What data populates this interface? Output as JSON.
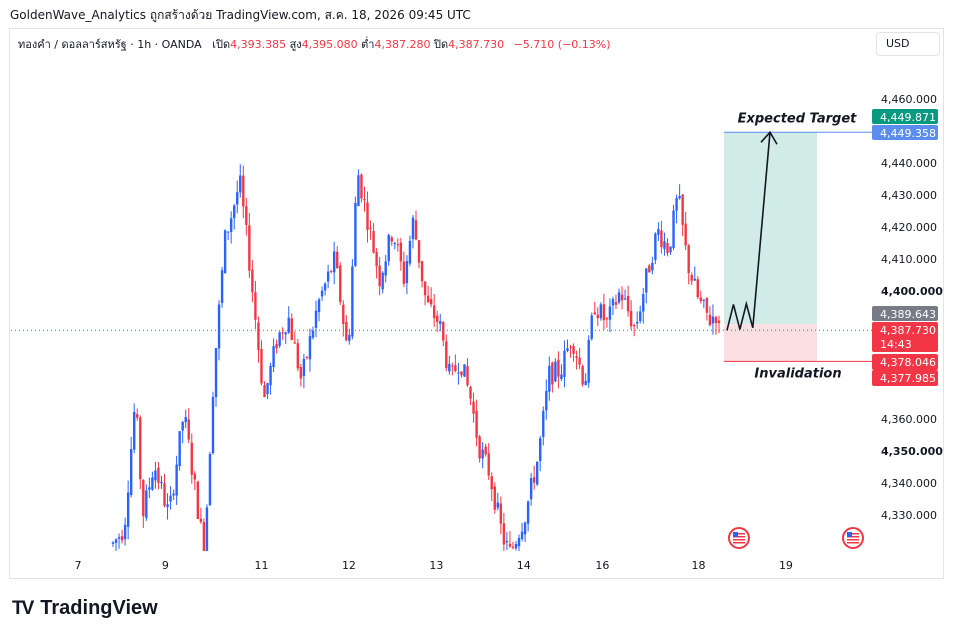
{
  "header": {
    "caption": "GoldenWave_Analytics ถูกสร้างด้วย TradingView.com, ส.ค. 18, 2026 09:45 UTC"
  },
  "legend": {
    "symbol": "ทองคำ / ดอลลาร์สหรัฐ · 1h · OANDA",
    "open_label": "เปิด",
    "open": "4,393.385",
    "high_label": "สูง",
    "high": "4,395.080",
    "low_label": "ต่ำ",
    "low": "4,387.280",
    "close_label": "ปิด",
    "close": "4,387.730",
    "change": "−5.710 (−0.13%)"
  },
  "currency": "USD",
  "brand": {
    "name": "TradingView",
    "mark": "TV"
  },
  "colors": {
    "up": "#2962ff",
    "down": "#f23645",
    "target_zone": "#d1ebe6",
    "stop_zone": "#fcdfe3",
    "target_label": "#089981",
    "current_price_tag": "#f23645",
    "grey_tag": "#787b86"
  },
  "chart_data": {
    "type": "candlestick",
    "title": "",
    "timeframe": "1h",
    "x_ticks": [
      "7",
      "9",
      "11",
      "12",
      "13",
      "14",
      "16",
      "18",
      "19"
    ],
    "y_ticks": [
      "4,460.000",
      "4,440.000",
      "4,430.000",
      "4,420.000",
      "4,410.000",
      "4,400.000",
      "4,360.000",
      "4,350.000",
      "4,340.000",
      "4,330.000"
    ],
    "y_bold_ticks": [
      "4,400.000",
      "4,350.000"
    ],
    "ylim": [
      4324,
      4463
    ],
    "current_price": 4387.73,
    "countdown": "14:43",
    "price_tags": [
      {
        "value": "4,449.871",
        "color": "#089981",
        "price": 4449.871
      },
      {
        "value": "4,449.358",
        "color": "#5b8def",
        "price": 4449.358
      },
      {
        "value": "4,389.643",
        "color": "#787b86",
        "price": 4389.643
      },
      {
        "value": "4,378.046",
        "color": "#f23645",
        "price": 4378.046
      },
      {
        "value": "4,377.985",
        "color": "#f23645",
        "price": 4377.985
      }
    ],
    "annotations": {
      "target_label": "Expected Target",
      "stop_label": "Invalidation"
    },
    "position": {
      "entry": 4389.6,
      "target": 4449.6,
      "stop": 4378.0
    },
    "projection_path": [
      [
        4387.7,
        0.0
      ],
      [
        4395.8,
        0.15
      ],
      [
        4388.0,
        0.3
      ],
      [
        4396.0,
        0.45
      ],
      [
        4388.5,
        0.6
      ],
      [
        4449.6,
        1.0
      ]
    ],
    "key_points": [
      [
        0.0,
        4321
      ],
      [
        0.6,
        4326
      ],
      [
        1.2,
        4366
      ],
      [
        1.6,
        4330
      ],
      [
        2.2,
        4346
      ],
      [
        3.0,
        4330
      ],
      [
        3.8,
        4362
      ],
      [
        4.9,
        4318
      ],
      [
        5.4,
        4374
      ],
      [
        6.0,
        4416
      ],
      [
        6.8,
        4434
      ],
      [
        7.3,
        4410
      ],
      [
        8.1,
        4366
      ],
      [
        8.8,
        4385
      ],
      [
        9.4,
        4392
      ],
      [
        10.1,
        4372
      ],
      [
        11.0,
        4396
      ],
      [
        11.9,
        4410
      ],
      [
        12.6,
        4380
      ],
      [
        13.1,
        4438
      ],
      [
        13.6,
        4424
      ],
      [
        14.3,
        4404
      ],
      [
        15.0,
        4419
      ],
      [
        15.6,
        4404
      ],
      [
        16.1,
        4422
      ],
      [
        16.8,
        4396
      ],
      [
        17.5,
        4390
      ],
      [
        18.1,
        4372
      ],
      [
        18.6,
        4379
      ],
      [
        19.2,
        4366
      ],
      [
        19.6,
        4352
      ],
      [
        20.2,
        4343
      ],
      [
        20.9,
        4323
      ],
      [
        21.3,
        4318
      ],
      [
        22.1,
        4330
      ],
      [
        22.8,
        4348
      ],
      [
        23.4,
        4374
      ],
      [
        24.0,
        4375
      ],
      [
        24.6,
        4386
      ],
      [
        25.3,
        4371
      ],
      [
        25.8,
        4396
      ],
      [
        26.5,
        4390
      ],
      [
        27.2,
        4400
      ],
      [
        28.0,
        4388
      ],
      [
        28.6,
        4404
      ],
      [
        29.2,
        4419
      ],
      [
        29.8,
        4413
      ],
      [
        30.3,
        4430
      ],
      [
        30.8,
        4409
      ],
      [
        31.4,
        4397
      ],
      [
        32.0,
        4391
      ],
      [
        32.4,
        4393.4
      ],
      [
        32.5,
        4387.7
      ]
    ]
  }
}
